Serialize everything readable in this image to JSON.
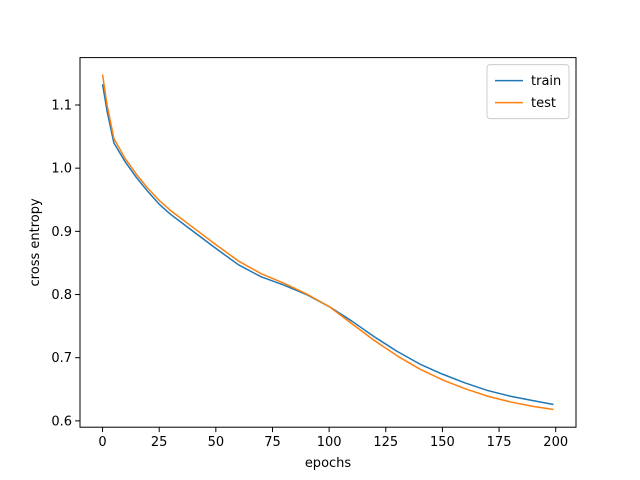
{
  "chart_data": {
    "type": "line",
    "x_label": "epochs",
    "y_label": "cross entropy",
    "x": [
      0,
      2,
      5,
      10,
      15,
      20,
      25,
      30,
      40,
      50,
      60,
      70,
      80,
      90,
      100,
      110,
      120,
      130,
      140,
      150,
      160,
      170,
      180,
      190,
      199
    ],
    "series": [
      {
        "name": "train",
        "color": "#1f77b4",
        "values": [
          1.133,
          1.09,
          1.04,
          1.01,
          0.985,
          0.963,
          0.943,
          0.927,
          0.9,
          0.873,
          0.847,
          0.828,
          0.815,
          0.8,
          0.781,
          0.758,
          0.733,
          0.71,
          0.69,
          0.674,
          0.66,
          0.648,
          0.639,
          0.632,
          0.626
        ]
      },
      {
        "name": "test",
        "color": "#ff7f0e",
        "values": [
          1.148,
          1.1,
          1.047,
          1.015,
          0.99,
          0.968,
          0.949,
          0.933,
          0.906,
          0.879,
          0.853,
          0.833,
          0.818,
          0.801,
          0.781,
          0.754,
          0.727,
          0.703,
          0.682,
          0.665,
          0.651,
          0.639,
          0.63,
          0.623,
          0.618
        ]
      }
    ],
    "xlim": [
      -9.95,
      208.95
    ],
    "xticks": [
      0,
      25,
      50,
      75,
      100,
      125,
      150,
      175,
      200
    ],
    "ylim": [
      0.59,
      1.175
    ],
    "yticks": [
      0.6,
      0.7,
      0.8,
      0.9,
      {
        "value": 1.0,
        "label": "1.0"
      },
      1.1
    ],
    "legend": "upper right"
  }
}
